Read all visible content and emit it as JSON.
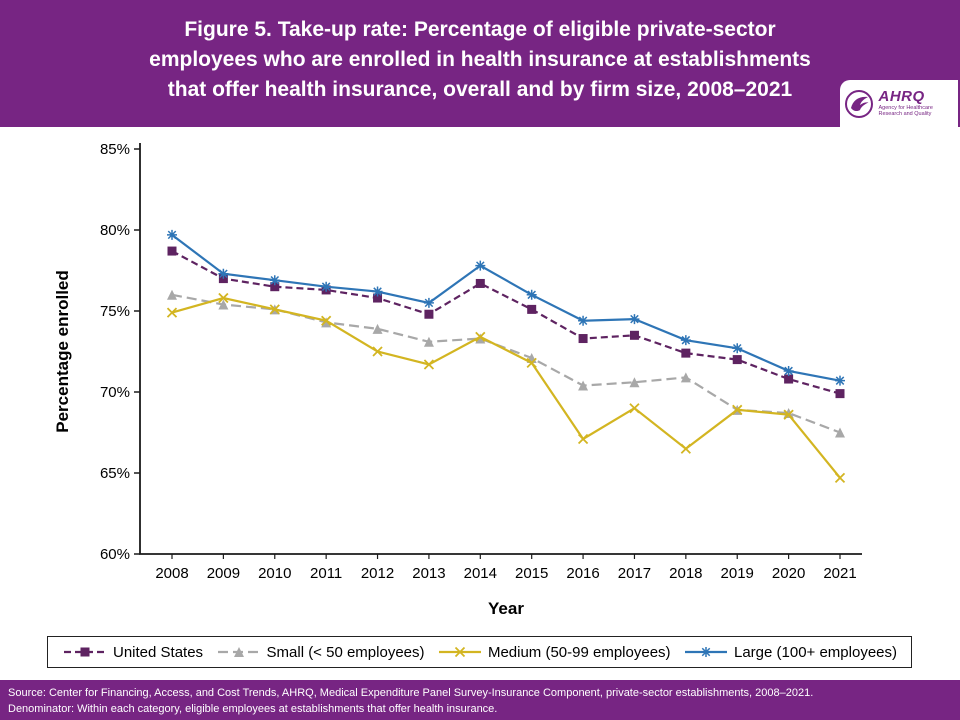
{
  "header": {
    "background": "#772583",
    "title_lines": [
      "Figure 5. Take-up rate: Percentage of eligible private-sector",
      "employees who are enrolled in health insurance at establishments",
      "that offer health insurance, overall and by firm size, 2008–2021"
    ],
    "logo": {
      "name": "AHRQ",
      "tagline": "Agency for Healthcare Research and Quality"
    }
  },
  "chart_data": {
    "type": "line",
    "x": [
      2008,
      2009,
      2010,
      2011,
      2012,
      2013,
      2014,
      2015,
      2016,
      2017,
      2018,
      2019,
      2020,
      2021
    ],
    "series": [
      {
        "name": "United States",
        "color": "#5E2361",
        "dash": "7 4",
        "marker": "square",
        "values": [
          78.7,
          77.0,
          76.5,
          76.3,
          75.8,
          74.8,
          76.7,
          75.1,
          73.3,
          73.5,
          72.4,
          72.0,
          70.8,
          69.9
        ]
      },
      {
        "name": "Small (< 50 employees)",
        "color": "#A8A8A8",
        "dash": "10 5",
        "marker": "triangle",
        "values": [
          76.0,
          75.4,
          75.1,
          74.3,
          73.9,
          73.1,
          73.3,
          72.1,
          70.4,
          70.6,
          70.9,
          68.9,
          68.7,
          67.5
        ]
      },
      {
        "name": "Medium (50-99 employees)",
        "color": "#D3B521",
        "dash": "",
        "marker": "x",
        "values": [
          74.9,
          75.8,
          75.1,
          74.4,
          72.5,
          71.7,
          73.4,
          71.8,
          67.1,
          69.0,
          66.5,
          68.9,
          68.6,
          64.7
        ]
      },
      {
        "name": "Large (100+ employees)",
        "color": "#2E75B6",
        "dash": "",
        "marker": "asterisk",
        "values": [
          79.7,
          77.3,
          76.9,
          76.5,
          76.2,
          75.5,
          77.8,
          76.0,
          74.4,
          74.5,
          73.2,
          72.7,
          71.3,
          70.7
        ]
      }
    ],
    "xlabel": "Year",
    "ylabel": "Percentage enrolled",
    "ylim": [
      60,
      85
    ],
    "ytick_step": 5,
    "ytick_format": "%",
    "grid": false,
    "legend_position": "bottom"
  },
  "footer": {
    "background": "#772583",
    "lines": [
      "Source: Center for Financing, Access, and Cost Trends, AHRQ, Medical Expenditure Panel Survey-Insurance Component, private-sector establishments, 2008–2021.",
      "Denominator: Within each category, eligible employees at establishments that offer health insurance."
    ]
  }
}
